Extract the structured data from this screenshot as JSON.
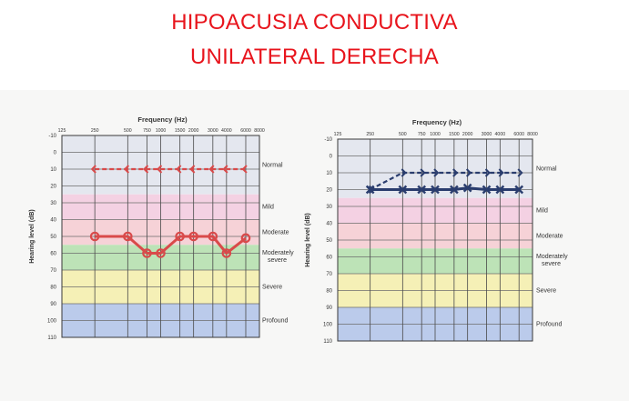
{
  "slide": {
    "title_line1": "HIPOACUSIA CONDUCTIVA",
    "title_line2": "UNILATERAL DERECHA"
  },
  "colors": {
    "title": "#e8141c",
    "band_normal": "#e3e6ee",
    "band_mild": "#f3cfe2",
    "band_moderate": "#f5d0d5",
    "band_mod_severe": "#b9e1b3",
    "band_severe": "#f4efb2",
    "band_profound": "#b7c8ea",
    "right_ear": "#d94a4a",
    "left_ear": "#2a3d6e"
  },
  "chart_data": [
    {
      "type": "line",
      "title": "Frequency (Hz)",
      "xlabel": "Frequency (Hz)",
      "ylabel": "Hearing level (dB)",
      "x_ticks": [
        "125",
        "250",
        "500",
        "750",
        "1000",
        "1500",
        "2000",
        "3000",
        "4000",
        "6000",
        "8000"
      ],
      "y_ticks": [
        "-10",
        "0",
        "10",
        "20",
        "30",
        "40",
        "50",
        "60",
        "70",
        "80",
        "90",
        "100",
        "110"
      ],
      "ylim": [
        -10,
        110
      ],
      "y_inverted": true,
      "bands": [
        {
          "label": "Normal",
          "from": -10,
          "to": 25,
          "color_key": "band_normal"
        },
        {
          "label": "Mild",
          "from": 25,
          "to": 40,
          "color_key": "band_mild"
        },
        {
          "label": "Moderate",
          "from": 40,
          "to": 55,
          "color_key": "band_moderate"
        },
        {
          "label": "Moderately severe",
          "from": 55,
          "to": 70,
          "color_key": "band_mod_severe"
        },
        {
          "label": "Severe",
          "from": 70,
          "to": 90,
          "color_key": "band_severe"
        },
        {
          "label": "Profound",
          "from": 90,
          "to": 110,
          "color_key": "band_profound"
        }
      ],
      "series": [
        {
          "style": "dashed",
          "marker": "bracket-left",
          "color_key": "right_ear",
          "x": [
            250,
            500,
            750,
            1000,
            1500,
            2000,
            3000,
            4000,
            6000
          ],
          "values": [
            10,
            10,
            10,
            10,
            10,
            10,
            10,
            10,
            10
          ]
        },
        {
          "style": "solid",
          "marker": "circle",
          "color_key": "right_ear",
          "x": [
            250,
            500,
            750,
            1000,
            1500,
            2000,
            3000,
            4000,
            6000
          ],
          "values": [
            50,
            50,
            60,
            60,
            50,
            50,
            50,
            60,
            51
          ]
        }
      ]
    },
    {
      "type": "line",
      "title": "Frequency (Hz)",
      "xlabel": "Frequency (Hz)",
      "ylabel": "Hearing level (dB)",
      "x_ticks": [
        "125",
        "250",
        "500",
        "750",
        "1000",
        "1500",
        "2000",
        "3000",
        "4000",
        "6000",
        "8000"
      ],
      "y_ticks": [
        "-10",
        "0",
        "10",
        "20",
        "30",
        "40",
        "50",
        "60",
        "70",
        "80",
        "90",
        "100",
        "110"
      ],
      "ylim": [
        -10,
        110
      ],
      "y_inverted": true,
      "bands": [
        {
          "label": "Normal",
          "from": -10,
          "to": 25,
          "color_key": "band_normal"
        },
        {
          "label": "Mild",
          "from": 25,
          "to": 40,
          "color_key": "band_mild"
        },
        {
          "label": "Moderate",
          "from": 40,
          "to": 55,
          "color_key": "band_moderate"
        },
        {
          "label": "Moderately severe",
          "from": 55,
          "to": 70,
          "color_key": "band_mod_severe"
        },
        {
          "label": "Severe",
          "from": 70,
          "to": 90,
          "color_key": "band_severe"
        },
        {
          "label": "Profound",
          "from": 90,
          "to": 110,
          "color_key": "band_profound"
        }
      ],
      "series": [
        {
          "style": "dashed",
          "marker": "bracket-right",
          "color_key": "left_ear",
          "x": [
            250,
            500,
            750,
            1000,
            1500,
            2000,
            3000,
            4000,
            6000
          ],
          "values": [
            20,
            10,
            10,
            10,
            10,
            10,
            10,
            10,
            10
          ]
        },
        {
          "style": "solid",
          "marker": "cross",
          "color_key": "left_ear",
          "x": [
            250,
            500,
            750,
            1000,
            1500,
            2000,
            3000,
            4000,
            6000
          ],
          "values": [
            20,
            20,
            20,
            20,
            20,
            19,
            20,
            20,
            20
          ]
        }
      ]
    }
  ]
}
